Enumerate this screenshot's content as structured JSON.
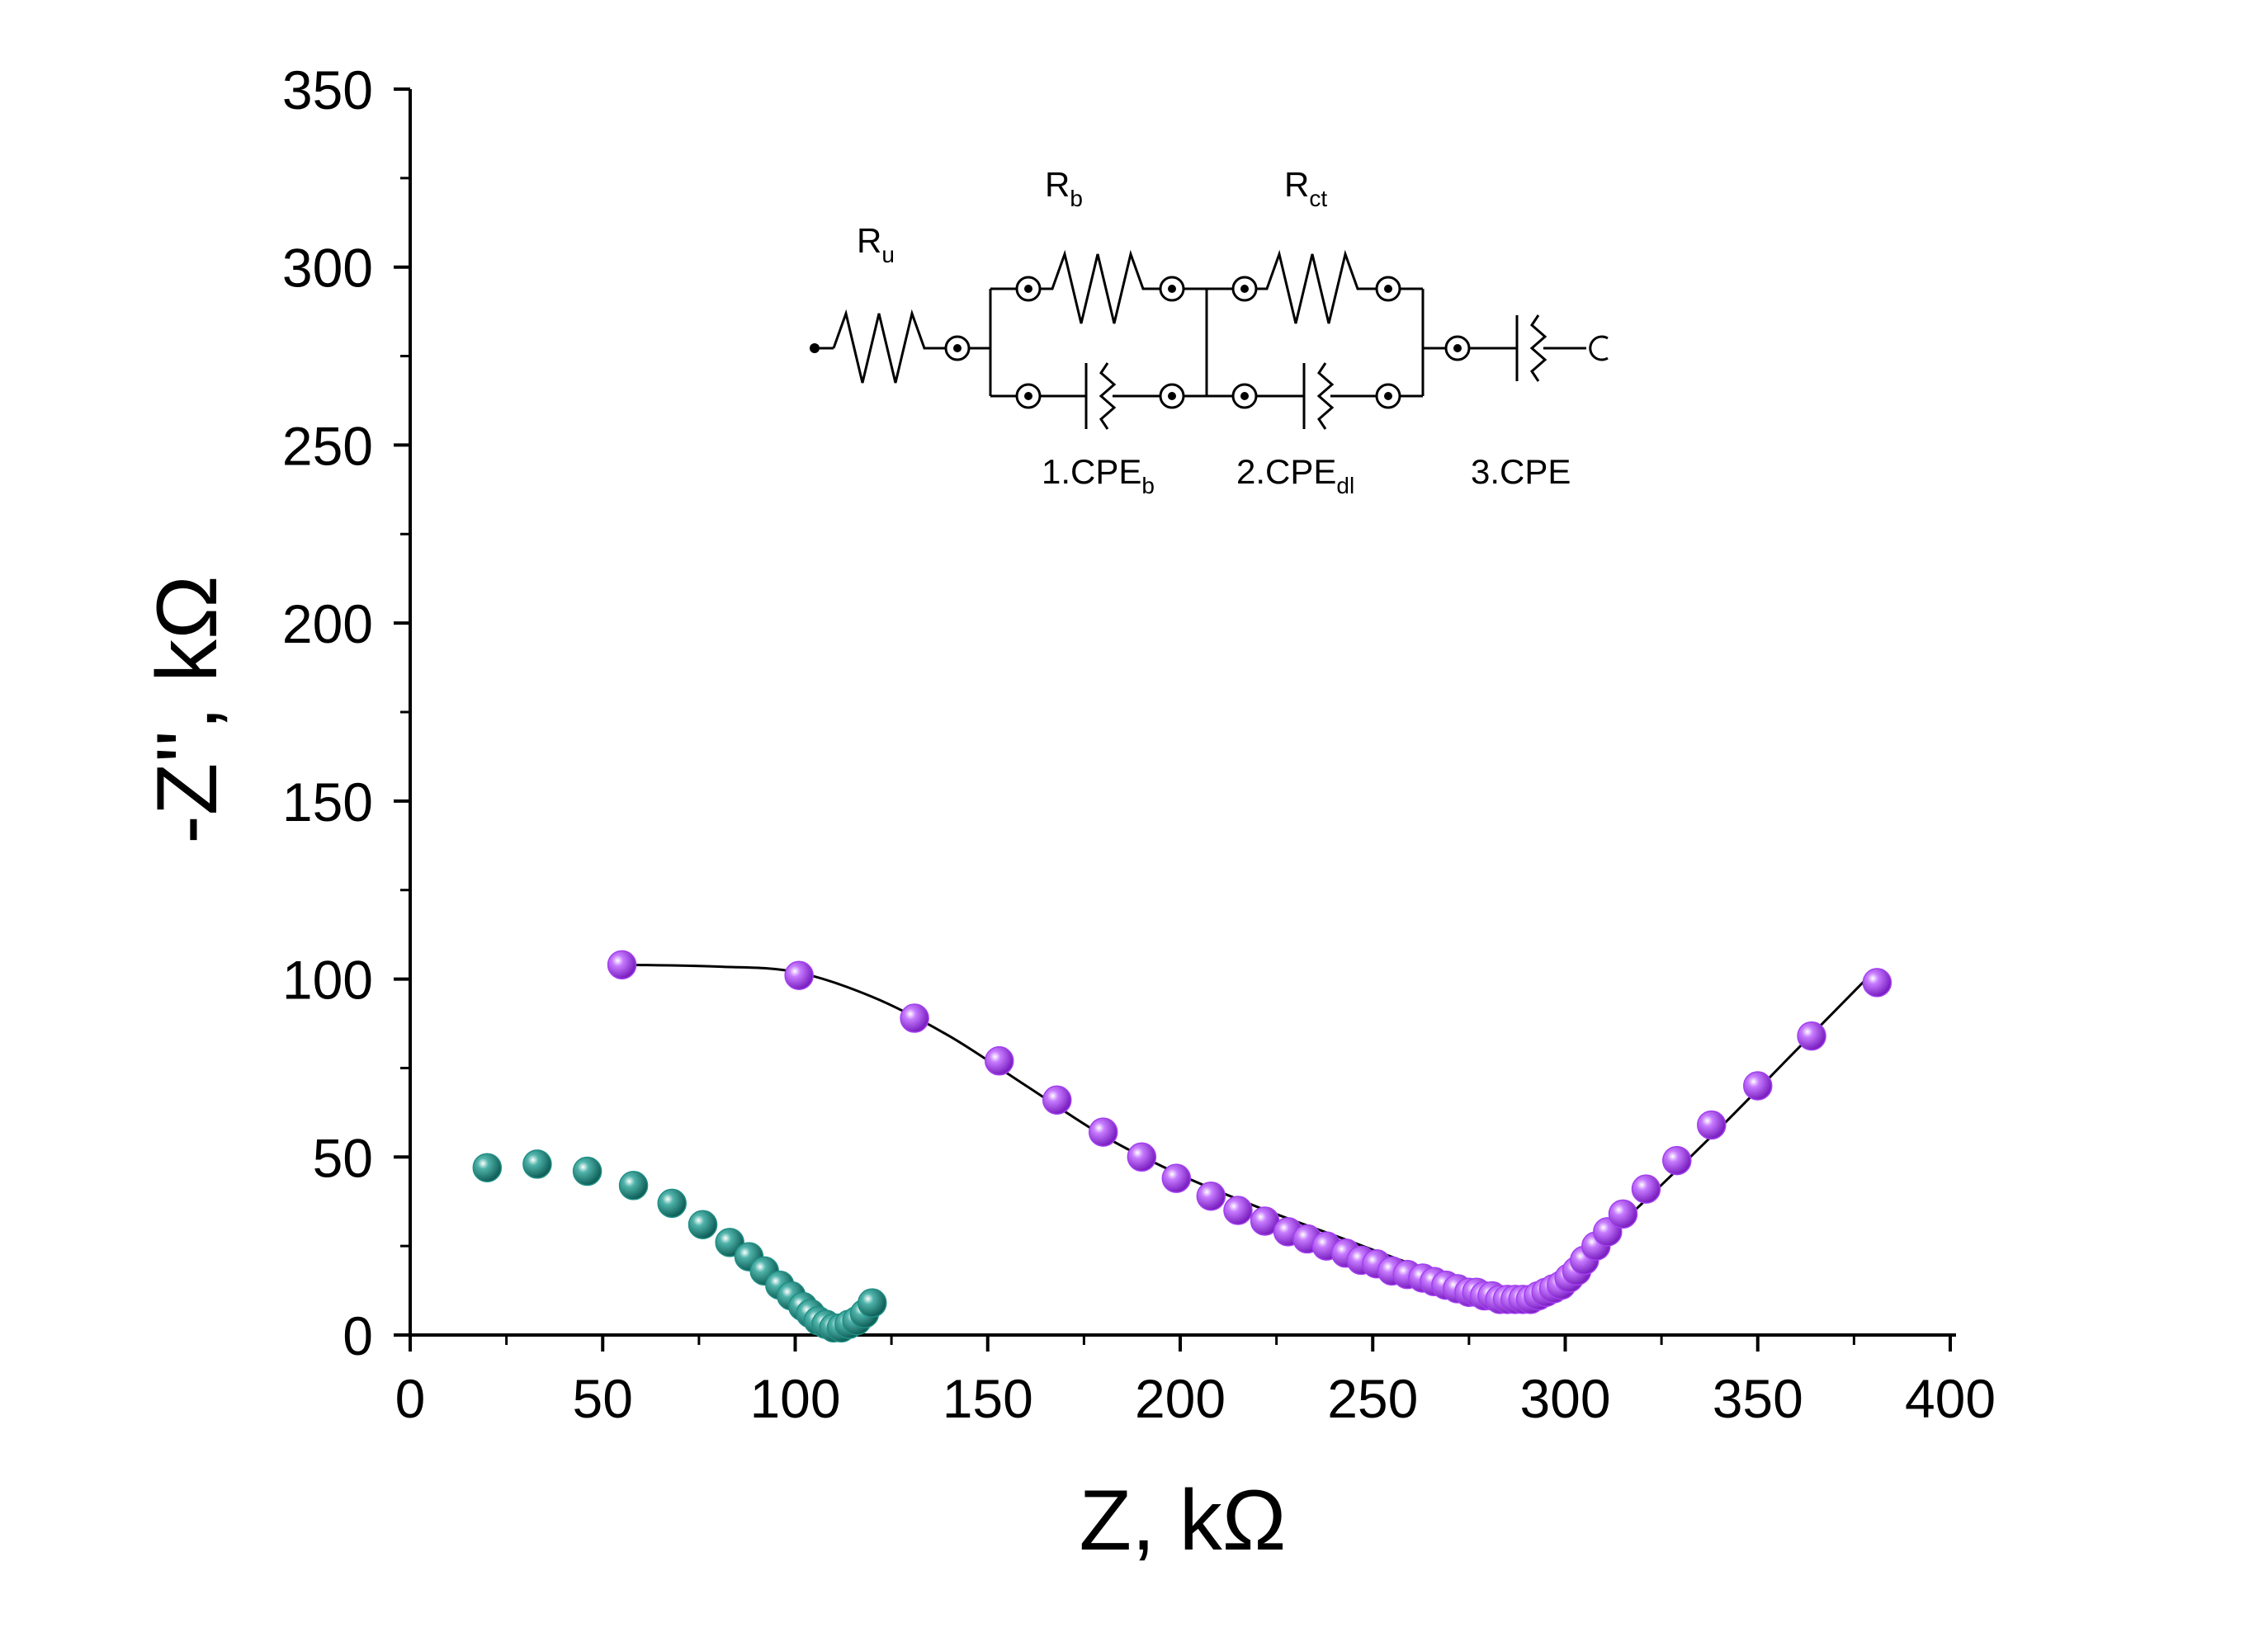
{
  "chart_data": {
    "type": "scatter",
    "title": "",
    "xlabel": "Z, kΩ",
    "ylabel": "-Z'', kΩ",
    "xlim": [
      0,
      400
    ],
    "ylim": [
      0,
      350
    ],
    "xticks": [
      0,
      50,
      100,
      150,
      200,
      250,
      300,
      350,
      400
    ],
    "yticks": [
      0,
      50,
      100,
      150,
      200,
      250,
      300,
      350
    ],
    "grid": false,
    "series": [
      {
        "name": "teal",
        "color": "#1f8f85",
        "x": [
          20,
          33,
          46,
          58,
          68,
          76,
          83,
          88,
          92,
          96,
          99,
          102,
          104,
          106,
          108,
          110,
          112,
          114,
          116,
          118,
          120
        ],
        "y": [
          47,
          48,
          46,
          42,
          37,
          31,
          26,
          22,
          18,
          14,
          11,
          8,
          6,
          4,
          3,
          2,
          2,
          3,
          4,
          6,
          9
        ]
      },
      {
        "name": "purple",
        "color": "#a33ff0",
        "x": [
          55,
          101,
          131,
          153,
          168,
          180,
          190,
          199,
          208,
          215,
          222,
          228,
          233,
          238,
          243,
          247,
          251,
          255,
          259,
          263,
          266,
          269,
          272,
          275,
          277,
          279,
          281,
          283,
          285,
          287,
          289,
          291,
          293,
          295,
          297,
          299,
          301,
          303,
          305,
          308,
          311,
          315,
          321,
          329,
          338,
          350,
          364,
          381
        ],
        "y": [
          104,
          101,
          89,
          77,
          66,
          57,
          50,
          44,
          39,
          35,
          32,
          29,
          27,
          25,
          23,
          21,
          20,
          18,
          17,
          16,
          15,
          14,
          13,
          12,
          12,
          11,
          11,
          10,
          10,
          10,
          10,
          10,
          11,
          12,
          13,
          14,
          16,
          18,
          21,
          25,
          29,
          34,
          41,
          49,
          59,
          70,
          84,
          99
        ]
      }
    ],
    "fit_line": {
      "name": "fit",
      "color": "#000000",
      "x": [
        57,
        80,
        100,
        120,
        140,
        160,
        180,
        200,
        220,
        240,
        260,
        275,
        285,
        295,
        305,
        320,
        340,
        360,
        380
      ],
      "y": [
        104,
        103.5,
        102,
        95,
        84,
        70,
        56,
        45,
        36,
        28,
        20,
        15,
        13,
        14,
        22,
        37,
        58,
        80,
        102
      ]
    },
    "inset_circuit": {
      "labels": {
        "ru": "R",
        "ru_sub": "u",
        "rb": "R",
        "rb_sub": "b",
        "rct": "R",
        "rct_sub": "ct",
        "cpe1": "1.CPE",
        "cpe1_sub": "b",
        "cpe2": "2.CPE",
        "cpe2_sub": "dl",
        "cpe3": "3.CPE"
      }
    }
  }
}
